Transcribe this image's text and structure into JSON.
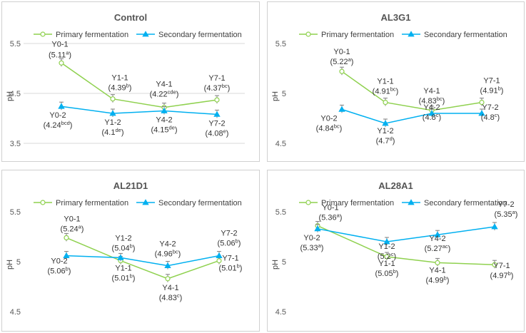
{
  "colors": {
    "primary": "#8fd14f",
    "secondary": "#00b0f0",
    "grid": "#d9d9d9",
    "errorbar": "#7f7f7f"
  },
  "legend": {
    "primary": "Primary fermentation",
    "secondary": "Secondary fermentation"
  },
  "chart_data": [
    {
      "type": "line",
      "title": "Control",
      "ylabel": "pH",
      "ylim": [
        3.5,
        5.5
      ],
      "yticks": [
        3.5,
        4.5,
        5.5
      ],
      "x": [
        "Y0",
        "Y1",
        "Y4",
        "Y7"
      ],
      "grid": true,
      "legend_position": "top",
      "series": [
        {
          "name": "Primary fermentation",
          "key": "primary",
          "marker": "circle",
          "values": [
            5.11,
            4.39,
            4.22,
            4.37
          ],
          "labels": [
            {
              "name": "Y0-1",
              "value": "5.11",
              "sup": "a"
            },
            {
              "name": "Y1-1",
              "value": "4.39",
              "sup": "b"
            },
            {
              "name": "Y4-1",
              "value": "4.22",
              "sup": "cde"
            },
            {
              "name": "Y7-1",
              "value": "4.37",
              "sup": "bc"
            }
          ]
        },
        {
          "name": "Secondary fermentation",
          "key": "secondary",
          "marker": "triangle",
          "values": [
            4.24,
            4.1,
            4.15,
            4.08
          ],
          "labels": [
            {
              "name": "Y0-2",
              "value": "4.24",
              "sup": "bcd"
            },
            {
              "name": "Y1-2",
              "value": "4.1",
              "sup": "de"
            },
            {
              "name": "Y4-2",
              "value": "4.15",
              "sup": "de"
            },
            {
              "name": "Y7-2",
              "value": "4.08",
              "sup": "e"
            }
          ]
        }
      ]
    },
    {
      "type": "line",
      "title": "AL3G1",
      "ylabel": "pH",
      "ylim": [
        4.5,
        5.5
      ],
      "yticks": [
        4.5,
        5,
        5.5
      ],
      "x": [
        "Y0",
        "Y1",
        "Y4",
        "Y7"
      ],
      "grid": false,
      "legend_position": "top",
      "series": [
        {
          "name": "Primary fermentation",
          "key": "primary",
          "marker": "circle",
          "values": [
            5.22,
            4.91,
            4.83,
            4.91
          ],
          "labels": [
            {
              "name": "Y0-1",
              "value": "5.22",
              "sup": "a"
            },
            {
              "name": "Y1-1",
              "value": "4.91",
              "sup": "bc"
            },
            {
              "name": "Y4-1",
              "value": "4.83",
              "sup": "bc"
            },
            {
              "name": "Y7-1",
              "value": "4.91",
              "sup": "b"
            }
          ]
        },
        {
          "name": "Secondary fermentation",
          "key": "secondary",
          "marker": "triangle",
          "values": [
            4.84,
            4.7,
            4.8,
            4.8
          ],
          "labels": [
            {
              "name": "Y0-2",
              "value": "4.84",
              "sup": "bc"
            },
            {
              "name": "Y1-2",
              "value": "4.7",
              "sup": "d"
            },
            {
              "name": "Y4-2",
              "value": "4.8",
              "sup": "c"
            },
            {
              "name": "Y7-2",
              "value": "4.8",
              "sup": "c"
            }
          ]
        }
      ]
    },
    {
      "type": "line",
      "title": "AL21D1",
      "ylabel": "pH",
      "ylim": [
        4.5,
        5.5
      ],
      "yticks": [
        4.5,
        5,
        5.5
      ],
      "x": [
        "Y0",
        "Y1",
        "Y4",
        "Y7"
      ],
      "grid": false,
      "legend_position": "top",
      "series": [
        {
          "name": "Primary fermentation",
          "key": "primary",
          "marker": "circle",
          "values": [
            5.24,
            5.01,
            4.83,
            5.01
          ],
          "labels": [
            {
              "name": "Y0-1",
              "value": "5.24",
              "sup": "a"
            },
            {
              "name": "Y1-1",
              "value": "5.01",
              "sup": "b"
            },
            {
              "name": "Y4-1",
              "value": "4.83",
              "sup": "c"
            },
            {
              "name": "Y7-1",
              "value": "5.01",
              "sup": "b"
            }
          ]
        },
        {
          "name": "Secondary fermentation",
          "key": "secondary",
          "marker": "triangle",
          "values": [
            5.06,
            5.04,
            4.96,
            5.06
          ],
          "labels": [
            {
              "name": "Y0-2",
              "value": "5.06",
              "sup": "b"
            },
            {
              "name": "Y1-2",
              "value": "5.04",
              "sup": "b"
            },
            {
              "name": "Y4-2",
              "value": "4.96",
              "sup": "bc"
            },
            {
              "name": "Y7-2",
              "value": "5.06",
              "sup": "b"
            }
          ]
        }
      ]
    },
    {
      "type": "line",
      "title": "AL28A1",
      "ylabel": "pH",
      "ylim": [
        4.5,
        5.5
      ],
      "yticks": [
        4.5,
        5,
        5.5
      ],
      "x": [
        "Y0",
        "Y1",
        "Y4",
        "Y7"
      ],
      "grid": false,
      "legend_position": "top",
      "series": [
        {
          "name": "Primary fermentation",
          "key": "primary",
          "marker": "circle",
          "values": [
            5.36,
            5.05,
            4.99,
            4.97
          ],
          "labels": [
            {
              "name": "Y0-1",
              "value": "5.36",
              "sup": "a"
            },
            {
              "name": "Y1-1",
              "value": "5.05",
              "sup": "b"
            },
            {
              "name": "Y4-1",
              "value": "4.99",
              "sup": "b"
            },
            {
              "name": "Y7-1",
              "value": "4.97",
              "sup": "b"
            }
          ]
        },
        {
          "name": "Secondary fermentation",
          "key": "secondary",
          "marker": "triangle",
          "values": [
            5.33,
            5.2,
            5.27,
            5.35
          ],
          "labels": [
            {
              "name": "Y0-2",
              "value": "5.33",
              "sup": "a"
            },
            {
              "name": "Y1-2",
              "value": "5.2",
              "sup": "c"
            },
            {
              "name": "Y4-2",
              "value": "5.27",
              "sup": "ac"
            },
            {
              "name": "Y7-2",
              "value": "5.35",
              "sup": "a"
            }
          ]
        }
      ]
    }
  ]
}
